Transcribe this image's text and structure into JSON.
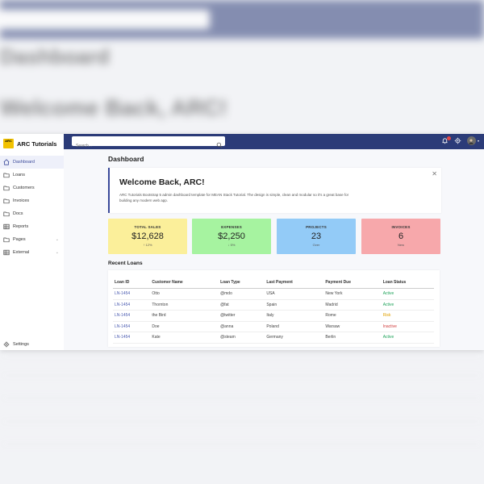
{
  "app": {
    "name": "ARC Tutorials",
    "logo_text": "ARC",
    "colors": {
      "topbar": "#2b3b78",
      "accent": "#3b4a9a",
      "active": "#1fa35a",
      "risk": "#e0a000",
      "inactive": "#d04040"
    }
  },
  "sidebar": {
    "items": [
      {
        "label": "Dashboard",
        "icon": "home-icon",
        "active": true
      },
      {
        "label": "Loans",
        "icon": "folder-icon"
      },
      {
        "label": "Customers",
        "icon": "folder-icon"
      },
      {
        "label": "Invoices",
        "icon": "folder-icon"
      },
      {
        "label": "Docs",
        "icon": "folder-icon"
      },
      {
        "label": "Reports",
        "icon": "table-icon"
      },
      {
        "label": "Pages",
        "icon": "folder-icon",
        "expandable": true
      },
      {
        "label": "External",
        "icon": "table-icon",
        "expandable": true
      }
    ],
    "settings_label": "Settings"
  },
  "topbar": {
    "search_placeholder": "Search...",
    "icons": [
      "bell-icon",
      "gear-icon",
      "avatar"
    ]
  },
  "main": {
    "title": "Dashboard",
    "welcome": {
      "title": "Welcome Back, ARC!",
      "description": "ARC Tutorials Bootstrap 5 admin dashboard template for MEAN Stack Tutorial. The design is simple, clean and modular so it's a great base for building any modern web app."
    },
    "cards": [
      {
        "label": "TOTAL SALES",
        "value": "$12,628",
        "sub": "↑ 12%",
        "color": "#fbef9a"
      },
      {
        "label": "EXPENSES",
        "value": "$2,250",
        "sub": "↓ 5%",
        "color": "#a6f3a0"
      },
      {
        "label": "PROJECTS",
        "value": "23",
        "sub": "Over",
        "color": "#93cbf7"
      },
      {
        "label": "INVOICES",
        "value": "6",
        "sub": "New",
        "color": "#f7a8ab"
      }
    ],
    "recent_loans": {
      "title": "Recent Loans",
      "columns": [
        "Loan ID",
        "Customer Name",
        "Loan Type",
        "Last Payment",
        "Payment Due",
        "Loan Status"
      ],
      "rows": [
        [
          "LN-1454",
          "Otto",
          "@mdo",
          "USA",
          "New York",
          "Active"
        ],
        [
          "LN-1454",
          "Thornton",
          "@fat",
          "Spain",
          "Madrid",
          "Active"
        ],
        [
          "LN-1454",
          "the Bird",
          "@twitter",
          "Italy",
          "Rome",
          "Risk"
        ],
        [
          "LN-1454",
          "Doe",
          "@anna",
          "Poland",
          "Warsaw",
          "Inactive"
        ],
        [
          "LN-1454",
          "Kate",
          "@steam",
          "Germany",
          "Berlin",
          "Active"
        ]
      ]
    }
  }
}
